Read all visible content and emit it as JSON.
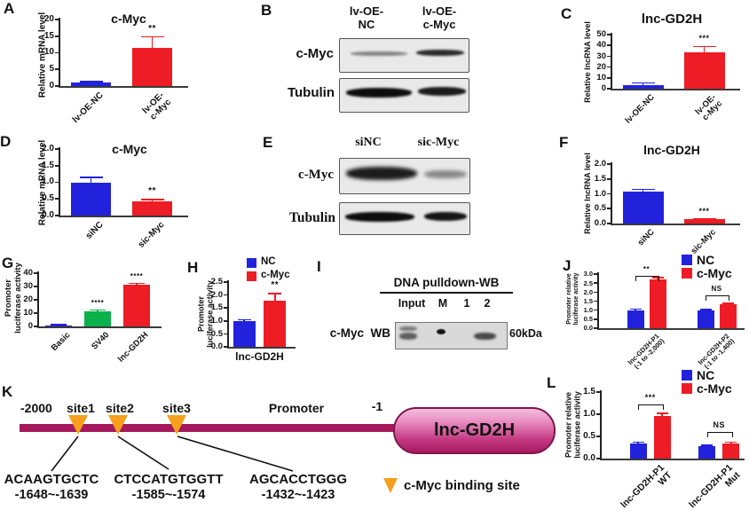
{
  "panels": {
    "a": "A",
    "b": "B",
    "c": "C",
    "d": "D",
    "e": "E",
    "f": "F",
    "g": "G",
    "h": "H",
    "i": "I",
    "j": "J",
    "k": "K",
    "l": "L"
  },
  "colors": {
    "blue": "#2222dd",
    "red": "#ee1c24",
    "green": "#0db14b",
    "promoter_bar": "#a5195c",
    "binding_triangle": "#f6a01e",
    "capsule_border": "#7e164e"
  },
  "chart_data": [
    {
      "panel": "A",
      "type": "bar",
      "title": "c-Myc",
      "ylabel": "Relative mRNA level",
      "ylim": [
        0,
        20
      ],
      "yticks": [
        "0",
        "5",
        "10",
        "15",
        "20"
      ],
      "categories": [
        "lv-OE-NC",
        "lv-OE-\nc-Myc"
      ],
      "values": [
        1.2,
        11.5
      ],
      "errors": [
        0.2,
        3.3
      ],
      "bar_colors": [
        "blue",
        "red"
      ],
      "sig_labels": [
        "",
        "**"
      ]
    },
    {
      "panel": "C",
      "type": "bar",
      "title": "lnc-GD2H",
      "ylabel": "Relative lncRNA level",
      "ylim": [
        0,
        50
      ],
      "yticks": [
        "0",
        "10",
        "20",
        "30",
        "40",
        "50"
      ],
      "categories": [
        "lv-OE-NC",
        "lv-OE-\nc-Myc"
      ],
      "values": [
        3,
        34
      ],
      "errors": [
        2.2,
        5
      ],
      "bar_colors": [
        "blue",
        "red"
      ],
      "sig_labels": [
        "",
        "***"
      ]
    },
    {
      "panel": "D",
      "type": "bar",
      "title": "c-Myc",
      "ylabel": "Relative mRNA level",
      "ylim": [
        0,
        2
      ],
      "yticks": [
        "0.0",
        "0.5",
        "1.0",
        "1.5",
        "2.0"
      ],
      "categories": [
        "siNC",
        "sic-Myc"
      ],
      "values": [
        1.0,
        0.42
      ],
      "errors": [
        0.14,
        0.06
      ],
      "bar_colors": [
        "blue",
        "red"
      ],
      "sig_labels": [
        "",
        "**"
      ]
    },
    {
      "panel": "F",
      "type": "bar",
      "title": "lnc-GD2H",
      "ylabel": "Relative lncRNA level",
      "ylim": [
        0,
        2
      ],
      "yticks": [
        "0.0",
        "0.5",
        "1.0",
        "1.5",
        "2.0"
      ],
      "categories": [
        "siNC",
        "sic-Myc"
      ],
      "values": [
        1.07,
        0.14
      ],
      "errors": [
        0.08,
        0.02
      ],
      "bar_colors": [
        "blue",
        "red"
      ],
      "sig_labels": [
        "",
        "***"
      ]
    },
    {
      "panel": "G",
      "type": "bar",
      "ylabel": "Promoter\nluciferase activity",
      "ylim": [
        0,
        40
      ],
      "yticks": [
        "0",
        "10",
        "20",
        "30",
        "40"
      ],
      "categories": [
        "Basic",
        "SV40",
        "lnc-GD2H"
      ],
      "values": [
        1,
        11.5,
        31.5
      ],
      "errors": [
        0.15,
        0.8,
        0.8
      ],
      "bar_colors": [
        "blue",
        "green",
        "red"
      ],
      "sig_labels": [
        "",
        "****",
        "****"
      ]
    },
    {
      "panel": "H",
      "type": "bar",
      "ylabel": "Promoter\nluciferase activity",
      "ylim": [
        0,
        2.5
      ],
      "yticks": [
        "0.0",
        "0.5",
        "1.0",
        "1.5",
        "2.0",
        "2.5"
      ],
      "legend": [
        "NC",
        "c-Myc"
      ],
      "group_label": "lnc-GD2H",
      "categories": [
        "NC",
        "c-Myc"
      ],
      "values": [
        1.0,
        1.78
      ],
      "errors": [
        0.04,
        0.27
      ],
      "bar_colors": [
        "blue",
        "red"
      ],
      "sig_labels": [
        "",
        "**"
      ]
    },
    {
      "panel": "J",
      "type": "bar",
      "ylabel": "Promoter relative\nluciferase activity",
      "ylim": [
        0,
        3
      ],
      "yticks": [
        "0.0",
        "0.5",
        "1.0",
        "1.5",
        "2.0",
        "2.5",
        "3.0"
      ],
      "legend": [
        "NC",
        "c-Myc"
      ],
      "groups": [
        {
          "label": "lnc-GD2H-P1\n(-1 to -2,000)",
          "values": [
            1.0,
            2.72
          ],
          "errors": [
            0.05,
            0.08
          ],
          "sig": "**",
          "sig_y": 2.92
        },
        {
          "label": "lnc-GD2H-P2\n(-1 to -1,400)",
          "values": [
            1.0,
            1.32
          ],
          "errors": [
            0.04,
            0.05
          ],
          "sig": "NS",
          "sig_y": 1.8
        }
      ]
    },
    {
      "panel": "L",
      "type": "bar",
      "ylabel": "Promoter relative\nluciferase activity",
      "ylim": [
        0,
        1.5
      ],
      "yticks": [
        "0.0",
        "0.5",
        "1.0",
        "1.5"
      ],
      "legend": [
        "NC",
        "c-Myc"
      ],
      "groups": [
        {
          "label": "lnc-GD2H-P1\nWT",
          "values": [
            0.35,
            0.97
          ],
          "errors": [
            0.02,
            0.05
          ],
          "sig": "***",
          "sig_y": 1.22
        },
        {
          "label": "lnc-GD2H-P1\nMut",
          "values": [
            0.29,
            0.35
          ],
          "errors": [
            0.015,
            0.02
          ],
          "sig": "NS",
          "sig_y": 0.6
        }
      ]
    }
  ],
  "blot_b": {
    "lane1": "lv-OE-\nNC",
    "lane2": "lv-OE-\nc-Myc",
    "row1": "c-Myc",
    "row2": "Tubulin"
  },
  "blot_e": {
    "lane1": "siNC",
    "lane2": "sic-Myc",
    "row1": "c-Myc",
    "row2": "Tubulin"
  },
  "pulldown": {
    "title": "DNA pulldown-WB",
    "lane1": "Input",
    "lane2": "M",
    "lane3": "1",
    "lane4": "2",
    "row_label": "c-Myc  WB",
    "size": "60kDa"
  },
  "schematic": {
    "start": "-2000",
    "end": "-1",
    "site1": "site1",
    "site2": "site2",
    "site3": "site3",
    "promoter": "Promoter",
    "gene": "lnc-GD2H",
    "legend": "c-Myc binding site",
    "seq1": "ACAAGTGCTC",
    "range1": "-1648~-1639",
    "seq2": "CTCCATGTGGTT",
    "range2": "-1585~-1574",
    "seq3": "AGCACCTGGG",
    "range3": "-1432~-1423"
  }
}
